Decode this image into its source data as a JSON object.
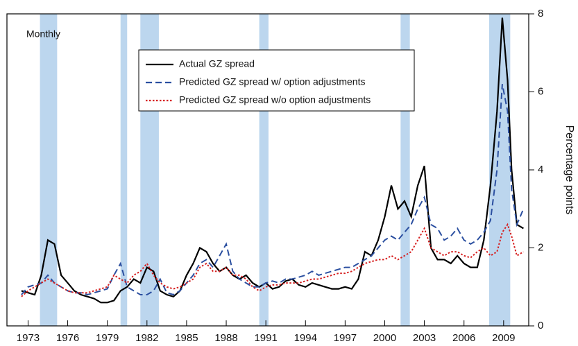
{
  "chart_data": {
    "type": "line",
    "annotation": "Monthly",
    "y_label": "Percentage points",
    "y_axis_side": "right",
    "legend": "upper-center",
    "xlim": [
      1971.4,
      2010.9
    ],
    "xticks": [
      1973,
      1976,
      1979,
      1982,
      1985,
      1988,
      1991,
      1994,
      1997,
      2000,
      2003,
      2006,
      2009
    ],
    "ylim": [
      0,
      8
    ],
    "yticks": [
      0,
      2,
      4,
      6,
      8
    ],
    "shade_color": "#bcd6ee",
    "shaded_periods": [
      [
        1973.9,
        1975.2
      ],
      [
        1980.0,
        1980.5
      ],
      [
        1981.5,
        1982.9
      ],
      [
        1990.5,
        1991.2
      ],
      [
        2001.2,
        2001.9
      ],
      [
        2007.9,
        2009.5
      ]
    ],
    "x": [
      1972.5,
      1973,
      1973.5,
      1974,
      1974.5,
      1975,
      1975.5,
      1976,
      1976.5,
      1977,
      1977.5,
      1978,
      1978.5,
      1979,
      1979.5,
      1980,
      1980.5,
      1981,
      1981.5,
      1982,
      1982.5,
      1983,
      1983.5,
      1984,
      1984.5,
      1985,
      1985.5,
      1986,
      1986.5,
      1987,
      1987.5,
      1988,
      1988.5,
      1989,
      1989.5,
      1990,
      1990.5,
      1991,
      1991.5,
      1992,
      1992.5,
      1993,
      1993.5,
      1994,
      1994.5,
      1995,
      1995.5,
      1996,
      1996.5,
      1997,
      1997.5,
      1998,
      1998.5,
      1999,
      1999.5,
      2000,
      2000.5,
      2001,
      2001.5,
      2002,
      2002.5,
      2003,
      2003.5,
      2004,
      2004.5,
      2005,
      2005.5,
      2006,
      2006.5,
      2007,
      2007.5,
      2008,
      2008.5,
      2008.9,
      2009.3,
      2009.6,
      2010,
      2010.5
    ],
    "series": [
      {
        "name": "Actual GZ spread",
        "color": "#000000",
        "linestyle": "solid",
        "values": [
          0.9,
          0.85,
          0.8,
          1.3,
          2.2,
          2.1,
          1.3,
          1.1,
          0.9,
          0.8,
          0.75,
          0.7,
          0.6,
          0.6,
          0.65,
          0.9,
          1.0,
          1.2,
          1.1,
          1.5,
          1.4,
          0.9,
          0.8,
          0.75,
          0.9,
          1.3,
          1.6,
          2.0,
          1.9,
          1.6,
          1.4,
          1.5,
          1.3,
          1.2,
          1.3,
          1.1,
          1.0,
          1.1,
          0.95,
          1.0,
          1.15,
          1.2,
          1.05,
          1.0,
          1.1,
          1.05,
          1.0,
          0.95,
          0.95,
          1.0,
          0.95,
          1.2,
          1.9,
          1.8,
          2.2,
          2.8,
          3.6,
          3.0,
          3.2,
          2.8,
          3.6,
          4.1,
          2.0,
          1.7,
          1.7,
          1.6,
          1.8,
          1.6,
          1.5,
          1.5,
          2.2,
          3.6,
          5.5,
          7.9,
          6.3,
          4.0,
          2.6,
          2.5
        ]
      },
      {
        "name": "Predicted GZ spread w/ option adjustments",
        "color": "#2b4fa0",
        "linestyle": "dashed",
        "values": [
          0.8,
          1.0,
          1.05,
          1.1,
          1.3,
          1.1,
          1.0,
          0.9,
          0.85,
          0.85,
          0.8,
          0.85,
          0.9,
          0.95,
          1.3,
          1.6,
          1.0,
          0.9,
          0.8,
          0.8,
          0.9,
          1.2,
          0.85,
          0.8,
          0.9,
          1.1,
          1.3,
          1.6,
          1.7,
          1.5,
          1.8,
          2.1,
          1.4,
          1.2,
          1.1,
          1.0,
          1.0,
          1.1,
          1.15,
          1.1,
          1.2,
          1.2,
          1.25,
          1.3,
          1.4,
          1.3,
          1.35,
          1.4,
          1.45,
          1.5,
          1.5,
          1.6,
          1.7,
          1.8,
          2.0,
          2.2,
          2.3,
          2.2,
          2.4,
          2.6,
          3.0,
          3.3,
          2.6,
          2.5,
          2.2,
          2.3,
          2.5,
          2.2,
          2.1,
          2.2,
          2.4,
          2.7,
          4.0,
          6.2,
          5.5,
          3.5,
          2.6,
          3.0
        ]
      },
      {
        "name": "Predicted GZ spread w/o option adjustments",
        "color": "#d62020",
        "linestyle": "dotted",
        "values": [
          0.75,
          0.9,
          1.0,
          1.1,
          1.2,
          1.1,
          1.0,
          0.9,
          0.85,
          0.85,
          0.85,
          0.9,
          0.95,
          1.0,
          1.3,
          1.2,
          1.1,
          1.3,
          1.4,
          1.6,
          1.3,
          1.1,
          1.0,
          0.95,
          1.0,
          1.1,
          1.2,
          1.5,
          1.6,
          1.4,
          1.4,
          1.5,
          1.3,
          1.3,
          1.2,
          1.0,
          0.9,
          1.0,
          1.05,
          1.05,
          1.1,
          1.1,
          1.1,
          1.15,
          1.2,
          1.2,
          1.25,
          1.3,
          1.35,
          1.35,
          1.4,
          1.5,
          1.6,
          1.65,
          1.7,
          1.7,
          1.8,
          1.7,
          1.8,
          1.9,
          2.2,
          2.5,
          2.0,
          1.9,
          1.8,
          1.9,
          1.9,
          1.8,
          1.75,
          1.9,
          2.0,
          1.8,
          1.9,
          2.4,
          2.6,
          2.3,
          1.8,
          1.9
        ]
      }
    ]
  }
}
